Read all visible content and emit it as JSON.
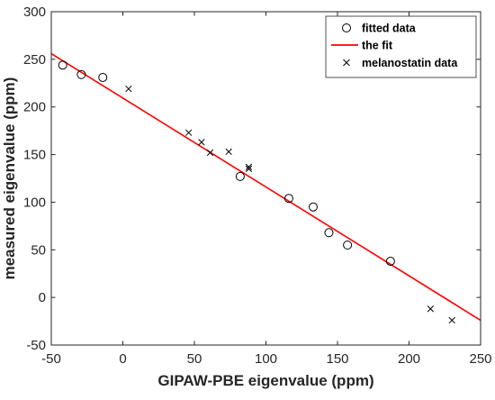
{
  "chart_data": {
    "type": "scatter",
    "xlabel": "GIPAW-PBE eigenvalue (ppm)",
    "ylabel": "measured eigenvalue (ppm)",
    "xlim": [
      -50,
      250
    ],
    "ylim": [
      -50,
      300
    ],
    "x_ticks": [
      -50,
      0,
      50,
      100,
      150,
      200,
      250
    ],
    "y_ticks": [
      -50,
      0,
      50,
      100,
      150,
      200,
      250,
      300
    ],
    "grid": false,
    "legend_position": "top-right",
    "series": [
      {
        "name": "fitted data",
        "kind": "scatter",
        "marker": "circle",
        "color": "#000000",
        "x": [
          -42,
          -29,
          -14,
          82,
          116,
          133,
          144,
          157,
          187
        ],
        "y": [
          244,
          234,
          231,
          127,
          104,
          95,
          68,
          55,
          38
        ]
      },
      {
        "name": "the fit",
        "kind": "line",
        "color": "#ff0000",
        "x": [
          -50,
          250
        ],
        "y": [
          256,
          -24
        ]
      },
      {
        "name": "melanostatin data",
        "kind": "scatter",
        "marker": "x",
        "color": "#000000",
        "x": [
          4,
          46,
          55,
          61,
          74,
          88,
          88,
          215,
          230
        ],
        "y": [
          219,
          173,
          163,
          152,
          153,
          135,
          137,
          -12,
          -24
        ]
      }
    ]
  }
}
